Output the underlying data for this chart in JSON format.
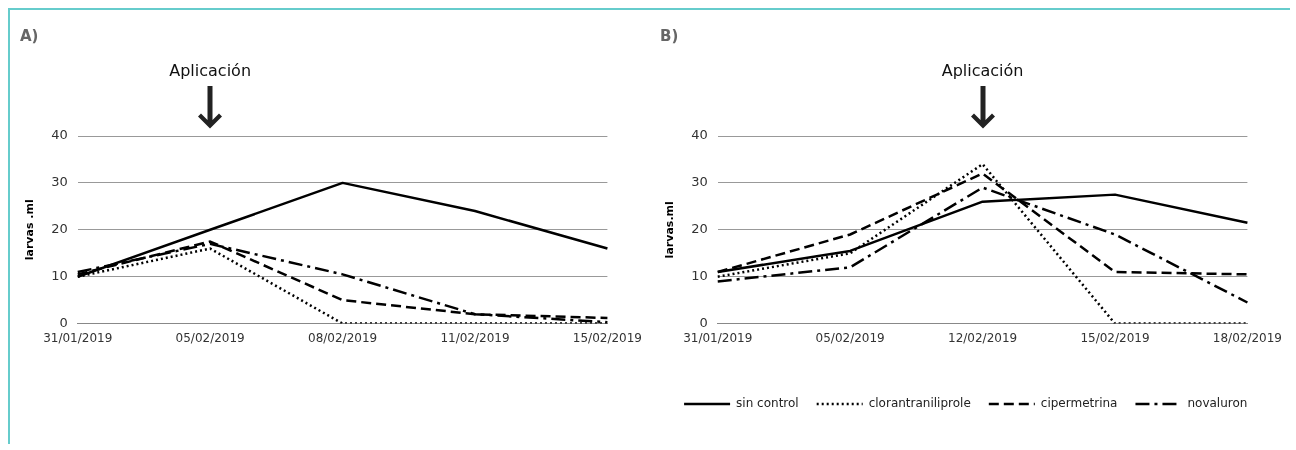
{
  "chart_data": [
    {
      "type": "line",
      "title": "A)",
      "ylabel": "larvas .ml",
      "categories": [
        "31/01/2019",
        "05/02/2019",
        "08/02/2019",
        "11/02/2019",
        "15/02/2019"
      ],
      "ylim": [
        0,
        40
      ],
      "yticks": [
        0,
        10,
        20,
        30,
        40
      ],
      "grid": "y",
      "legend": false,
      "marker": "none",
      "annotations": [
        "Aplicación"
      ],
      "series": [
        {
          "color": "#000000",
          "line_style": "solid",
          "values": [
            10,
            20,
            30,
            24,
            16
          ]
        },
        {
          "color": "#000000",
          "line_style": "dotted",
          "values": [
            10,
            16,
            0,
            0,
            0
          ]
        },
        {
          "color": "#000000",
          "line_style": "dashed",
          "values": [
            10.5,
            17.5,
            5,
            2,
            1.2
          ]
        },
        {
          "color": "#000000",
          "line_style": "dashdot",
          "values": [
            11,
            17,
            10.5,
            2,
            0.3
          ]
        }
      ]
    },
    {
      "type": "line",
      "title": "B)",
      "ylabel": "larvas.ml",
      "categories": [
        "31/01/2019",
        "05/02/2019",
        "12/02/2019",
        "15/02/2019",
        "18/02/2019"
      ],
      "ylim": [
        0,
        40
      ],
      "yticks": [
        0,
        10,
        20,
        30,
        40
      ],
      "grid": "y",
      "legend": "bottom",
      "marker": "none",
      "annotations": [
        "Aplicación"
      ],
      "series": [
        {
          "name": "sin control",
          "color": "#000000",
          "line_style": "solid",
          "values": [
            11,
            15.5,
            26,
            27.5,
            21.5
          ]
        },
        {
          "name": "clorantraniliprole",
          "color": "#000000",
          "line_style": "dotted",
          "values": [
            10,
            15,
            34,
            0,
            0
          ]
        },
        {
          "name": "cipermetrina",
          "color": "#000000",
          "line_style": "dashed",
          "values": [
            11,
            19,
            32,
            11,
            10.5
          ]
        },
        {
          "name": "novaluron",
          "color": "#000000",
          "line_style": "dashdot",
          "values": [
            9,
            12,
            29,
            19,
            4.5
          ]
        }
      ]
    }
  ]
}
